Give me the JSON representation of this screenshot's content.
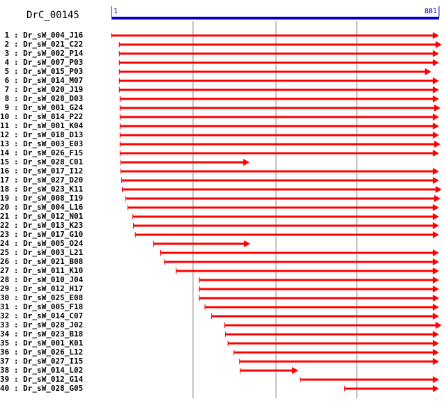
{
  "title": "DrC_00145",
  "ruler": {
    "start_label": "1",
    "end_label": "881",
    "length": 881,
    "color": "#0000cc"
  },
  "arrow_color": "#ff0000",
  "reads": [
    {
      "num": "1",
      "name": "Dr_sW_004_J16",
      "start": 1,
      "end": 881
    },
    {
      "num": "2",
      "name": "Dr_sW_021_C22",
      "start": 22,
      "end": 891
    },
    {
      "num": "3",
      "name": "Dr_sW_002_P14",
      "start": 22,
      "end": 881
    },
    {
      "num": "4",
      "name": "Dr_sW_007_P03",
      "start": 22,
      "end": 881
    },
    {
      "num": "5",
      "name": "Dr_sW_015_P03",
      "start": 22,
      "end": 860
    },
    {
      "num": "6",
      "name": "Dr_sW_014_M07",
      "start": 22,
      "end": 881
    },
    {
      "num": "7",
      "name": "Dr_sW_020_J19",
      "start": 22,
      "end": 881
    },
    {
      "num": "8",
      "name": "Dr_sW_028_D03",
      "start": 24,
      "end": 881
    },
    {
      "num": "9",
      "name": "Dr_sW_001_G24",
      "start": 24,
      "end": 885
    },
    {
      "num": "10",
      "name": "Dr_sW_014_P22",
      "start": 24,
      "end": 881
    },
    {
      "num": "11",
      "name": "Dr_sW_001_K04",
      "start": 24,
      "end": 881
    },
    {
      "num": "12",
      "name": "Dr_sW_018_D13",
      "start": 24,
      "end": 881
    },
    {
      "num": "13",
      "name": "Dr_sW_003_E03",
      "start": 24,
      "end": 885
    },
    {
      "num": "14",
      "name": "Dr_sW_026_F15",
      "start": 24,
      "end": 881
    },
    {
      "num": "15",
      "name": "Dr_sW_028_C01",
      "start": 26,
      "end": 372
    },
    {
      "num": "16",
      "name": "Dr_sW_017_I12",
      "start": 26,
      "end": 881
    },
    {
      "num": "17",
      "name": "Dr_sW_027_D20",
      "start": 28,
      "end": 881
    },
    {
      "num": "18",
      "name": "Dr_sW_023_K11",
      "start": 30,
      "end": 891
    },
    {
      "num": "19",
      "name": "Dr_sW_008_I19",
      "start": 39,
      "end": 885
    },
    {
      "num": "20",
      "name": "Dr_sW_004_L16",
      "start": 45,
      "end": 881
    },
    {
      "num": "21",
      "name": "Dr_sW_012_N01",
      "start": 58,
      "end": 881
    },
    {
      "num": "22",
      "name": "Dr_sW_013_K23",
      "start": 60,
      "end": 881
    },
    {
      "num": "23",
      "name": "Dr_sW_017_G10",
      "start": 65,
      "end": 881
    },
    {
      "num": "24",
      "name": "Dr_sW_005_O24",
      "start": 114,
      "end": 374
    },
    {
      "num": "25",
      "name": "Dr_sW_003_L21",
      "start": 133,
      "end": 881
    },
    {
      "num": "26",
      "name": "Dr_sW_021_B08",
      "start": 143,
      "end": 881
    },
    {
      "num": "27",
      "name": "Dr_sW_011_K10",
      "start": 175,
      "end": 881
    },
    {
      "num": "28",
      "name": "Dr_sW_010_J04",
      "start": 237,
      "end": 881
    },
    {
      "num": "29",
      "name": "Dr_sW_012_H17",
      "start": 237,
      "end": 881
    },
    {
      "num": "30",
      "name": "Dr_sW_025_E08",
      "start": 237,
      "end": 881
    },
    {
      "num": "31",
      "name": "Dr_sW_005_F18",
      "start": 252,
      "end": 881
    },
    {
      "num": "32",
      "name": "Dr_sW_014_C07",
      "start": 270,
      "end": 881
    },
    {
      "num": "33",
      "name": "Dr_sW_028_J02",
      "start": 305,
      "end": 891
    },
    {
      "num": "34",
      "name": "Dr_sW_023_B18",
      "start": 307,
      "end": 881
    },
    {
      "num": "35",
      "name": "Dr_sW_001_K01",
      "start": 314,
      "end": 881
    },
    {
      "num": "36",
      "name": "Dr_sW_026_L12",
      "start": 330,
      "end": 881
    },
    {
      "num": "37",
      "name": "Dr_sW_027_I15",
      "start": 345,
      "end": 881
    },
    {
      "num": "38",
      "name": "Dr_sW_014_L02",
      "start": 347,
      "end": 503
    },
    {
      "num": "39",
      "name": "Dr_sW_012_G14",
      "start": 508,
      "end": 881
    },
    {
      "num": "40",
      "name": "Dr_sW_028_G05",
      "start": 627,
      "end": 881
    }
  ]
}
